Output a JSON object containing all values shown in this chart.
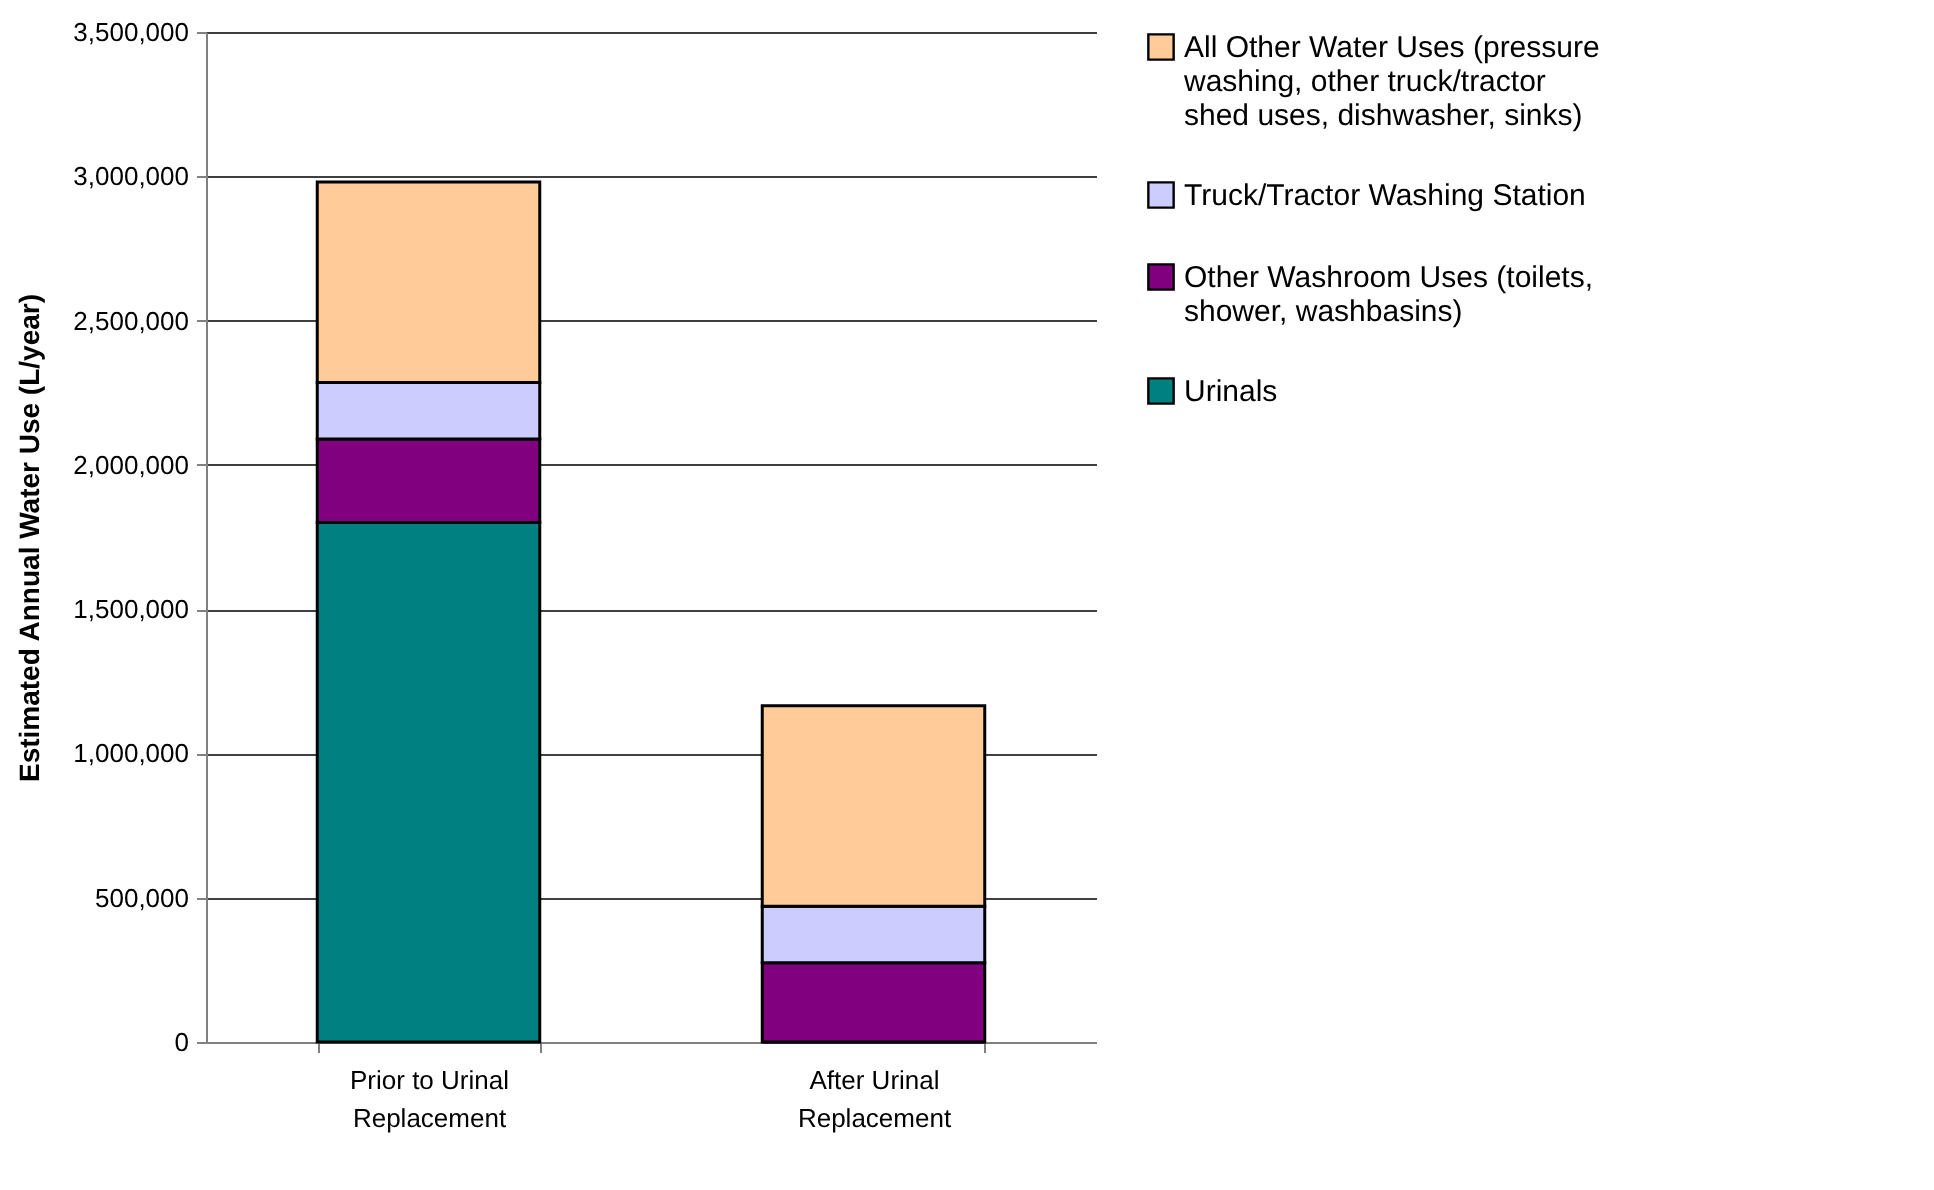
{
  "chart_data": {
    "type": "bar",
    "stacked": true,
    "ylabel": "Estimated Annual Water Use (L/year)",
    "categories": [
      "Prior to Urinal Replacement",
      "After Urinal Replacement"
    ],
    "series": [
      {
        "name": "Urinals",
        "color": "#008080",
        "values": [
          1800000,
          0
        ]
      },
      {
        "name": "Other Washroom Uses (toilets, shower, washbasins)",
        "color": "#800080",
        "values": [
          290000,
          275000
        ]
      },
      {
        "name": "Truck/Tractor Washing Station",
        "color": "#ccccff",
        "values": [
          195000,
          195000
        ]
      },
      {
        "name": "All Other Water Uses (pressure washing, other truck/tractor shed uses, dishwasher, sinks)",
        "color": "#ffcc99",
        "values": [
          695000,
          695000
        ]
      }
    ],
    "ylim": [
      0,
      3500000
    ],
    "yticks": [
      {
        "value": 0,
        "label": "0"
      },
      {
        "value": 500000,
        "label": "500,000"
      },
      {
        "value": 1000000,
        "label": "1,000,000"
      },
      {
        "value": 1500000,
        "label": "1,500,000"
      },
      {
        "value": 2000000,
        "label": "2,000,000"
      },
      {
        "value": 2500000,
        "label": "2,500,000"
      },
      {
        "value": 3000000,
        "label": "3,000,000"
      },
      {
        "value": 3500000,
        "label": "3,500,000"
      }
    ],
    "grid": "y",
    "legend": "right"
  }
}
